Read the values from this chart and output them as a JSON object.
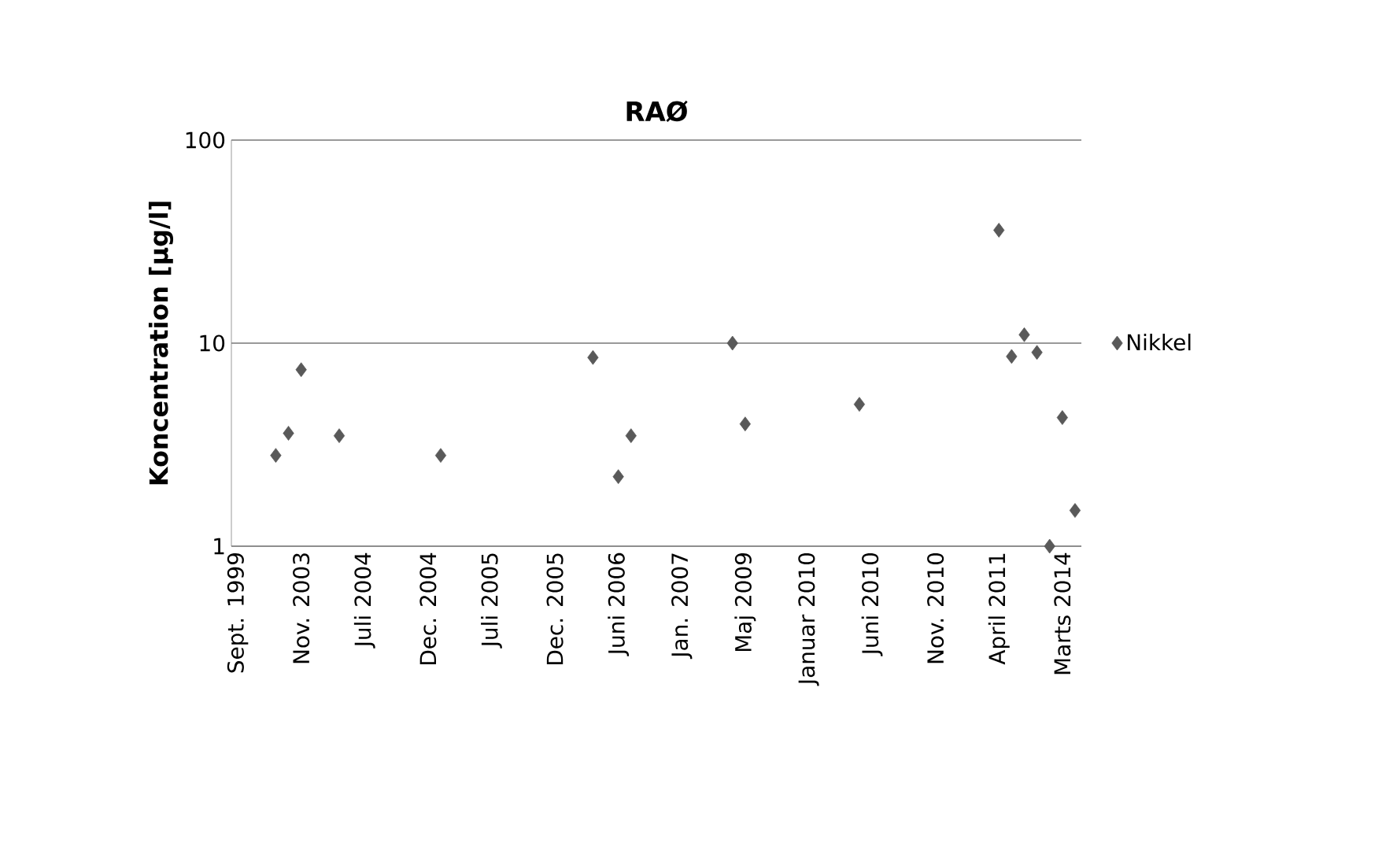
{
  "chart_data": {
    "type": "scatter",
    "title": "RAØ",
    "ylabel": "Koncentration [µg/l]",
    "categories": [
      "Sept. 1999",
      null,
      null,
      null,
      null,
      "Nov. 2003",
      null,
      null,
      null,
      null,
      "Juli 2004",
      null,
      null,
      null,
      null,
      "Dec. 2004",
      null,
      null,
      null,
      null,
      "Juli 2005",
      null,
      null,
      null,
      null,
      "Dec. 2005",
      null,
      null,
      null,
      null,
      "Juni 2006",
      null,
      null,
      null,
      null,
      "Jan. 2007",
      null,
      null,
      null,
      null,
      "Maj 2009",
      null,
      null,
      null,
      null,
      "Januar 2010",
      null,
      null,
      null,
      null,
      "Juni 2010",
      null,
      null,
      null,
      null,
      "Nov. 2010",
      null,
      null,
      null,
      null,
      "April 2011",
      null,
      null,
      null,
      null,
      "Marts 2014",
      null
    ],
    "series": [
      {
        "name": "Nikkel",
        "color": "#595959",
        "values": [
          null,
          null,
          null,
          2.8,
          3.6,
          7.4,
          null,
          null,
          3.5,
          null,
          null,
          null,
          null,
          null,
          null,
          null,
          2.8,
          null,
          null,
          null,
          null,
          null,
          null,
          null,
          null,
          null,
          null,
          null,
          8.5,
          null,
          2.2,
          3.5,
          null,
          null,
          null,
          null,
          null,
          null,
          null,
          10,
          4,
          null,
          null,
          null,
          null,
          null,
          null,
          null,
          null,
          5,
          null,
          null,
          null,
          null,
          null,
          null,
          null,
          null,
          null,
          null,
          36,
          8.6,
          11,
          9,
          1,
          4.3,
          1.5
        ]
      }
    ],
    "log": "y",
    "ylim": [
      1,
      100
    ],
    "yticks": [
      1,
      10,
      100
    ],
    "grid": "y",
    "legend": "right",
    "marker": "diamond"
  }
}
